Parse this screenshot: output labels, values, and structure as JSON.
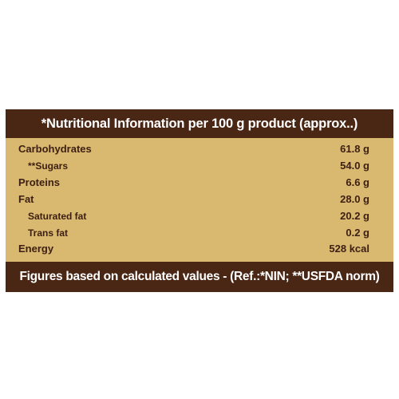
{
  "header": {
    "title": "*Nutritional Information per 100 g product (approx..)"
  },
  "nutrients": [
    {
      "name": "Carbohydrates",
      "value": "61.8 g",
      "sub": false
    },
    {
      "name": "**Sugars",
      "value": "54.0 g",
      "sub": true
    },
    {
      "name": "Proteins",
      "value": "6.6 g",
      "sub": false
    },
    {
      "name": "Fat",
      "value": "28.0 g",
      "sub": false
    },
    {
      "name": "Saturated fat",
      "value": "20.2 g",
      "sub": true
    },
    {
      "name": "Trans fat",
      "value": "0.2 g",
      "sub": true
    },
    {
      "name": "Energy",
      "value": "528 kcal",
      "sub": false
    }
  ],
  "footer": {
    "note": "Figures based on calculated values - (Ref.:*NIN; **USFDA norm)"
  },
  "colors": {
    "band": "#4a2615",
    "body": "#d9b86f",
    "text_dark": "#3c1f12"
  }
}
